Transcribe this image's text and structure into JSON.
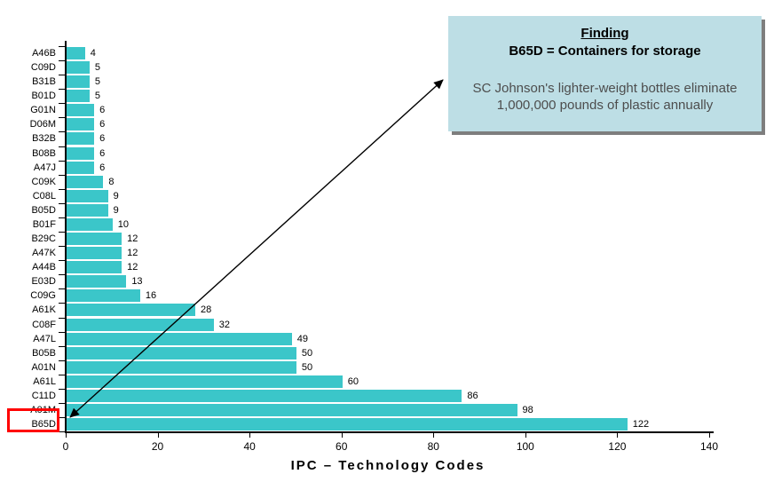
{
  "chart_data": {
    "type": "bar",
    "orientation": "horizontal",
    "categories": [
      "A46B",
      "C09D",
      "B31B",
      "B01D",
      "G01N",
      "D06M",
      "B32B",
      "B08B",
      "A47J",
      "C09K",
      "C08L",
      "B05D",
      "B01F",
      "B29C",
      "A47K",
      "A44B",
      "E03D",
      "C09G",
      "A61K",
      "C08F",
      "A47L",
      "B05B",
      "A01N",
      "A61L",
      "C11D",
      "A01M",
      "B65D"
    ],
    "values": [
      4,
      5,
      5,
      5,
      6,
      6,
      6,
      6,
      6,
      8,
      9,
      9,
      10,
      12,
      12,
      12,
      13,
      16,
      28,
      32,
      49,
      50,
      50,
      60,
      86,
      98,
      122
    ],
    "title": "",
    "xlabel": "IPC – Technology Codes",
    "ylabel": "",
    "x_ticks": [
      0,
      20,
      40,
      60,
      80,
      100,
      120,
      140
    ],
    "xlim": [
      0,
      140
    ],
    "grid": false,
    "legend": false,
    "bar_color": "#3bc6c9",
    "highlighted_category": "B65D"
  },
  "callout": {
    "title": "Finding",
    "subtitle": "B65D = Containers for storage",
    "body_line1": "SC Johnson's lighter-weight bottles eliminate",
    "body_line2": "1,000,000 pounds of plastic annually",
    "background_color": "#bddee5",
    "shadow_color": "#7e7e7e"
  },
  "annotations": {
    "highlight_color": "#ff0000",
    "arrow_color": "#000000"
  }
}
